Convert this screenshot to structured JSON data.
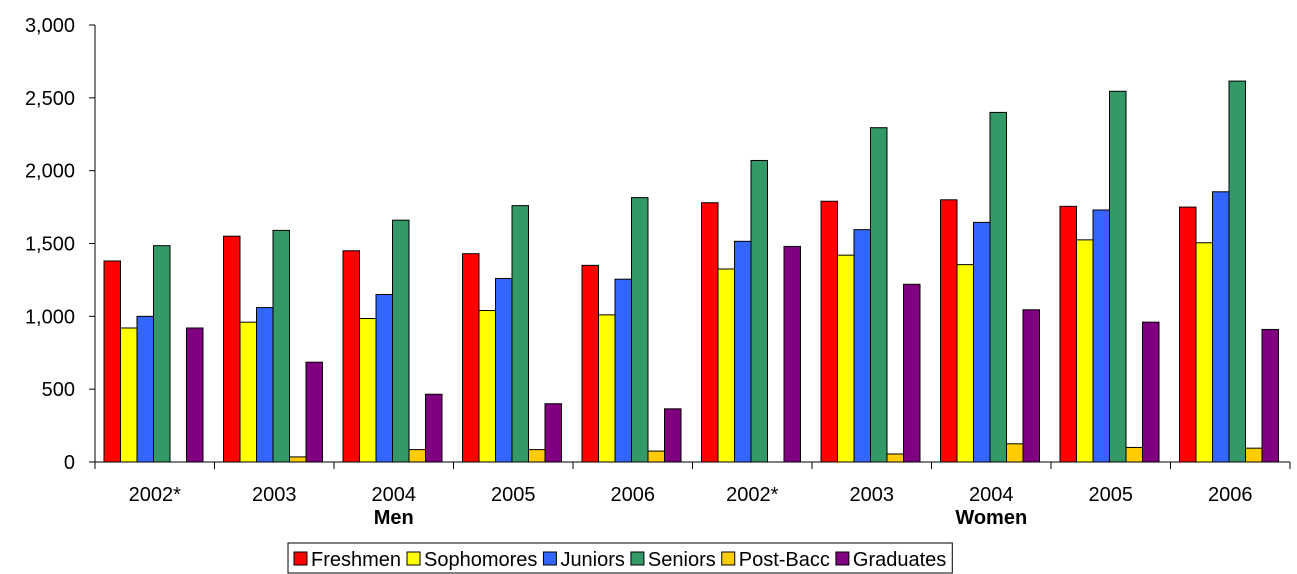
{
  "chart_data": {
    "type": "bar",
    "ylim": [
      0,
      3000
    ],
    "y_ticks": [
      "0",
      "500",
      "1,000",
      "1,500",
      "2,000",
      "2,500",
      "3,000"
    ],
    "categories": [
      "2002*",
      "2003",
      "2004",
      "2005",
      "2006",
      "2002*",
      "2003",
      "2004",
      "2005",
      "2006"
    ],
    "groups": [
      {
        "label": "Men",
        "categories": [
          "2002*",
          "2003",
          "2004",
          "2005",
          "2006"
        ]
      },
      {
        "label": "Women",
        "categories": [
          "2002*",
          "2003",
          "2004",
          "2005",
          "2006"
        ]
      }
    ],
    "series": [
      {
        "name": "Freshmen",
        "color": "#ff0000",
        "values": [
          1380,
          1550,
          1450,
          1430,
          1350,
          1780,
          1790,
          1800,
          1755,
          1750
        ]
      },
      {
        "name": "Sophomores",
        "color": "#ffff00",
        "values": [
          920,
          960,
          985,
          1040,
          1010,
          1325,
          1420,
          1355,
          1525,
          1505
        ]
      },
      {
        "name": "Juniors",
        "color": "#3366ff",
        "values": [
          1000,
          1060,
          1150,
          1260,
          1255,
          1515,
          1595,
          1645,
          1730,
          1855
        ]
      },
      {
        "name": "Seniors",
        "color": "#339966",
        "values": [
          1485,
          1590,
          1660,
          1760,
          1815,
          2070,
          2295,
          2400,
          2545,
          2615
        ]
      },
      {
        "name": "Post-Bacc",
        "color": "#ffcc00",
        "values": [
          0,
          35,
          85,
          85,
          75,
          0,
          55,
          125,
          100,
          95
        ]
      },
      {
        "name": "Graduates",
        "color": "#800080",
        "values": [
          920,
          685,
          465,
          400,
          365,
          1480,
          1220,
          1045,
          960,
          910
        ]
      }
    ],
    "grid": false,
    "legend_position": "bottom"
  }
}
